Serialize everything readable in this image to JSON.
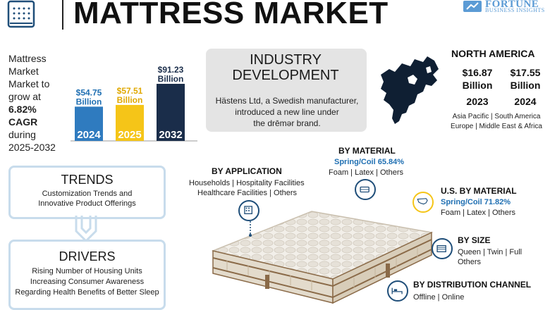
{
  "header": {
    "title": "MATTRESS MARKET",
    "brand_name": "FORTUNE",
    "brand_sub": "BUSINESS INSIGHTS"
  },
  "growth": {
    "line1": "Mattress Market",
    "line2": "Market to",
    "line3": "grow at",
    "cagr": "6.82%",
    "cagr_label": "CAGR",
    "line4": "during",
    "period": "2025-2032"
  },
  "chart_data": {
    "type": "bar",
    "categories": [
      "2024",
      "2025",
      "2032"
    ],
    "values": [
      54.75,
      57.51,
      91.23
    ],
    "value_labels": [
      "$54.75 Billion",
      "$57.51 Billion",
      "$91.23 Billion"
    ],
    "value_label_lines": [
      [
        "$54.75",
        "Billion"
      ],
      [
        "$57.51",
        "Billion"
      ],
      [
        "$91.23",
        "Billion"
      ]
    ],
    "colors": [
      "#2f7bbf",
      "#f5c518",
      "#1a2d4a"
    ],
    "label_colors": [
      "#1f6fb2",
      "#e0a800",
      "#1a2d4a"
    ],
    "ylim": [
      0,
      100
    ]
  },
  "industry": {
    "head_line1": "INDUSTRY",
    "head_line2": "DEVELOPMENT",
    "body_line1": "Hästens Ltd, a Swedish manufacturer,",
    "body_line2": "introduced a new line under",
    "body_line3": "the drēmər brand."
  },
  "north_america": {
    "title": "NORTH AMERICA",
    "v1_amount": "$16.87",
    "v1_unit": "Billion",
    "v1_year": "2023",
    "v2_amount": "$17.55",
    "v2_unit": "Billion",
    "v2_year": "2024",
    "regions_line1": "Asia Pacific  |  South America",
    "regions_line2": "Europe  |  Middle East & Africa"
  },
  "trends": {
    "title": "TRENDS",
    "line1": "Customization Trends and",
    "line2": "Innovative Product Offerings"
  },
  "drivers": {
    "title": "DRIVERS",
    "line1": "Rising Number of Housing Units",
    "line2": "Increasing Consumer Awareness",
    "line3": "Regarding Health Benefits of Better Sleep"
  },
  "segments": {
    "application": {
      "title": "BY APPLICATION",
      "line1": "Households  |  Hospitality Facilities",
      "line2": "Healthcare Facilities  |  Others"
    },
    "material": {
      "title": "BY MATERIAL",
      "highlight": "Spring/Coil  65.84%",
      "line1": "Foam  |  Latex  |  Others"
    },
    "us_material": {
      "title": "U.S. BY MATERIAL",
      "highlight": "Spring/Coil  71.82%",
      "line1": "Foam  |  Latex  |  Others"
    },
    "size": {
      "title": "BY SIZE",
      "line1": "Queen  |  Twin  |  Full",
      "line2": "Others"
    },
    "distribution": {
      "title": "BY DISTRIBUTION CHANNEL",
      "line1": "Offline  |  Online"
    }
  },
  "icons": {
    "logo": "mattress-logo-icon",
    "brand": "fortune-logo-icon",
    "map": "north-america-map-icon",
    "application": "building-icon",
    "material": "mattress-icon",
    "us_material": "usa-map-icon",
    "size": "bed-size-icon",
    "distribution": "bed-icon"
  }
}
